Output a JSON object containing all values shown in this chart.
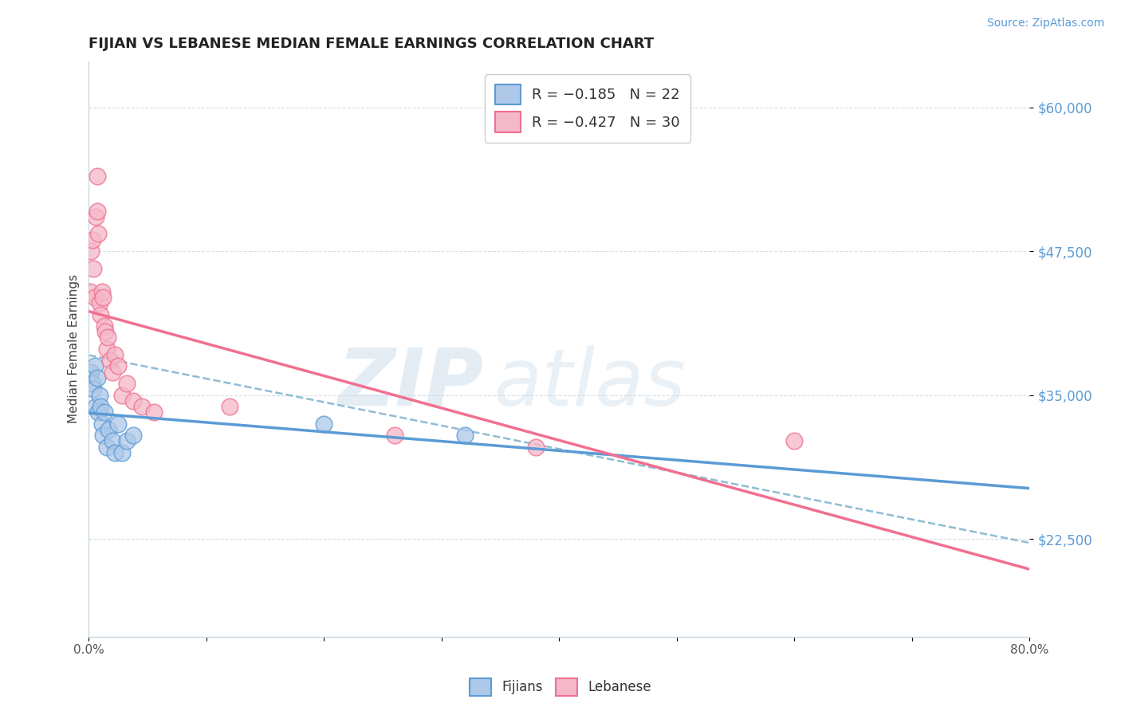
{
  "title": "FIJIAN VS LEBANESE MEDIAN FEMALE EARNINGS CORRELATION CHART",
  "source": "Source: ZipAtlas.com",
  "ylabel": "Median Female Earnings",
  "yticks": [
    22500,
    35000,
    47500,
    60000
  ],
  "ytick_labels": [
    "$22,500",
    "$35,000",
    "$47,500",
    "$60,000"
  ],
  "xmin": 0.0,
  "xmax": 0.8,
  "ymin": 14000,
  "ymax": 64000,
  "fijian_color": "#adc8e8",
  "fijian_edge_color": "#5b9bd5",
  "lebanese_color": "#f5b8c8",
  "lebanese_edge_color": "#f07090",
  "fijian_line_color": "#5b9bd5",
  "lebanese_line_color": "#f07090",
  "dashed_line_color": "#90bcd4",
  "legend_r1": "R = −0.185",
  "legend_n1": "N = 22",
  "legend_r2": "R = −0.427",
  "legend_n2": "N = 30",
  "watermark_zip": "ZIP",
  "watermark_atlas": "atlas",
  "fijian_x": [
    0.002,
    0.003,
    0.004,
    0.005,
    0.006,
    0.007,
    0.008,
    0.009,
    0.01,
    0.011,
    0.012,
    0.013,
    0.015,
    0.017,
    0.02,
    0.022,
    0.025,
    0.028,
    0.032,
    0.038,
    0.2,
    0.32
  ],
  "fijian_y": [
    37000,
    36000,
    35500,
    37500,
    34000,
    36500,
    33500,
    35000,
    34000,
    32500,
    31500,
    33500,
    30500,
    32000,
    31000,
    30000,
    32500,
    30000,
    31000,
    31500,
    32500,
    31500
  ],
  "lebanese_x": [
    0.001,
    0.002,
    0.003,
    0.004,
    0.005,
    0.006,
    0.007,
    0.007,
    0.008,
    0.009,
    0.01,
    0.011,
    0.012,
    0.013,
    0.014,
    0.015,
    0.016,
    0.018,
    0.02,
    0.022,
    0.025,
    0.028,
    0.032,
    0.038,
    0.045,
    0.055,
    0.12,
    0.26,
    0.38,
    0.6
  ],
  "lebanese_y": [
    44000,
    47500,
    48500,
    46000,
    43500,
    50500,
    54000,
    51000,
    49000,
    43000,
    42000,
    44000,
    43500,
    41000,
    40500,
    39000,
    40000,
    38000,
    37000,
    38500,
    37500,
    35000,
    36000,
    34500,
    34000,
    33500,
    34000,
    31500,
    30500,
    31000
  ]
}
